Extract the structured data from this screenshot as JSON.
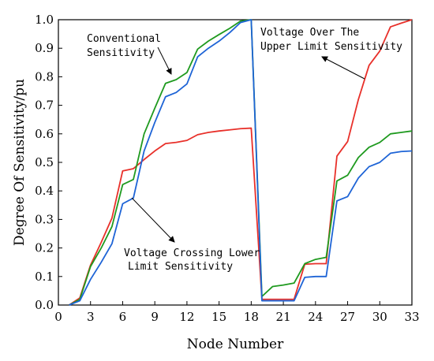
{
  "chart_data": {
    "type": "line",
    "xlabel": "Node Number",
    "ylabel": "Degree Of Sensitivity/pu",
    "xlim": [
      0,
      33
    ],
    "ylim": [
      0,
      1.0
    ],
    "xticks": [
      0,
      3,
      6,
      9,
      12,
      15,
      18,
      21,
      24,
      27,
      30,
      33
    ],
    "yticks": [
      0.0,
      0.1,
      0.2,
      0.3,
      0.4,
      0.5,
      0.6,
      0.7,
      0.8,
      0.9,
      1.0
    ],
    "ytick_labels": [
      "0.0",
      "0.1",
      "0.2",
      "0.3",
      "0.4",
      "0.5",
      "0.6",
      "0.7",
      "0.8",
      "0.9",
      "1.0"
    ],
    "grid": false,
    "x": [
      1,
      2,
      3,
      4,
      5,
      6,
      7,
      8,
      9,
      10,
      11,
      12,
      13,
      14,
      15,
      16,
      17,
      18,
      19,
      20,
      21,
      22,
      23,
      24,
      25,
      26,
      27,
      28,
      29,
      30,
      31,
      32,
      33
    ],
    "series": [
      {
        "color": "#e8302a",
        "values": [
          0.0,
          0.025,
          0.14,
          0.22,
          0.305,
          0.47,
          0.478,
          0.51,
          0.54,
          0.566,
          0.57,
          0.577,
          0.597,
          0.605,
          0.61,
          0.614,
          0.618,
          0.62,
          0.02,
          0.02,
          0.02,
          0.02,
          0.143,
          0.145,
          0.145,
          0.522,
          0.573,
          0.72,
          0.84,
          0.89,
          0.975,
          0.988,
          1.0
        ]
      },
      {
        "color": "#1f9a1f",
        "values": [
          0.0,
          0.02,
          0.135,
          0.2,
          0.275,
          0.422,
          0.44,
          0.6,
          0.69,
          0.777,
          0.79,
          0.815,
          0.897,
          0.925,
          0.948,
          0.97,
          0.995,
          1.0,
          0.03,
          0.065,
          0.07,
          0.077,
          0.145,
          0.16,
          0.167,
          0.435,
          0.455,
          0.517,
          0.553,
          0.57,
          0.6,
          0.605,
          0.61
        ]
      },
      {
        "color": "#1e64d6",
        "values": [
          0.0,
          0.015,
          0.09,
          0.15,
          0.215,
          0.355,
          0.375,
          0.54,
          0.64,
          0.73,
          0.745,
          0.775,
          0.87,
          0.9,
          0.925,
          0.955,
          0.99,
          1.0,
          0.015,
          0.015,
          0.015,
          0.015,
          0.097,
          0.1,
          0.1,
          0.365,
          0.38,
          0.445,
          0.485,
          0.5,
          0.532,
          0.538,
          0.54
        ]
      }
    ],
    "annotations": [
      {
        "lines": [
          "Conventional",
          "Sensitivity"
        ]
      },
      {
        "lines": [
          "Voltage Over The",
          "Upper Limit Sensitivity"
        ]
      },
      {
        "lines": [
          "Voltage Crossing Lower",
          "Limit Sensitivity"
        ]
      }
    ]
  }
}
